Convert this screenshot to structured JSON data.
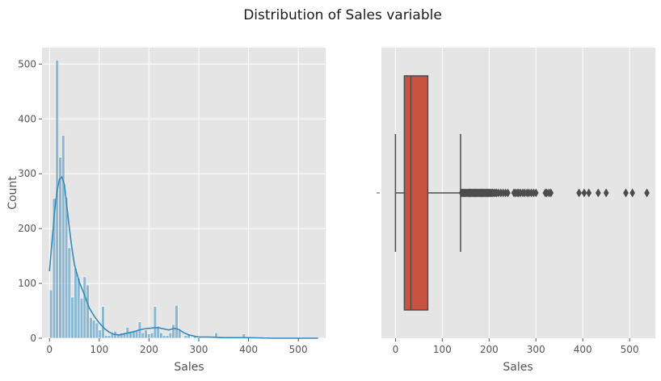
{
  "figure": {
    "title": "Distribution of Sales variable"
  },
  "colors": {
    "panel_bg": "#e5e5e5",
    "grid": "#ffffff",
    "hist_fill": "#348abd",
    "kde_line": "#348abd",
    "box_fill": "#c9533f",
    "whisker": "#4d4d4d"
  },
  "chart_data": [
    {
      "type": "bar",
      "subtype": "histogram_with_kde",
      "title": "",
      "xlabel": "Sales",
      "ylabel": "Count",
      "xlim": [
        -15,
        555
      ],
      "ylim": [
        0,
        530
      ],
      "xticks": [
        0,
        100,
        200,
        300,
        400,
        500
      ],
      "yticks": [
        0,
        100,
        200,
        300,
        400,
        500
      ],
      "grid": true,
      "bin_width": 6.15,
      "bins": [
        {
          "x": 0.0,
          "count": 88
        },
        {
          "x": 6.15,
          "count": 255
        },
        {
          "x": 12.3,
          "count": 507
        },
        {
          "x": 18.45,
          "count": 330
        },
        {
          "x": 24.6,
          "count": 370
        },
        {
          "x": 30.75,
          "count": 257
        },
        {
          "x": 36.9,
          "count": 165
        },
        {
          "x": 43.05,
          "count": 75
        },
        {
          "x": 49.2,
          "count": 128
        },
        {
          "x": 55.35,
          "count": 110
        },
        {
          "x": 61.5,
          "count": 73
        },
        {
          "x": 67.65,
          "count": 112
        },
        {
          "x": 73.8,
          "count": 97
        },
        {
          "x": 79.95,
          "count": 38
        },
        {
          "x": 86.1,
          "count": 33
        },
        {
          "x": 92.25,
          "count": 28
        },
        {
          "x": 98.4,
          "count": 15
        },
        {
          "x": 104.55,
          "count": 58
        },
        {
          "x": 110.7,
          "count": 5
        },
        {
          "x": 116.85,
          "count": 5
        },
        {
          "x": 123.0,
          "count": 8
        },
        {
          "x": 129.15,
          "count": 13
        },
        {
          "x": 135.3,
          "count": 6
        },
        {
          "x": 141.45,
          "count": 10
        },
        {
          "x": 147.6,
          "count": 11
        },
        {
          "x": 153.75,
          "count": 20
        },
        {
          "x": 159.9,
          "count": 13
        },
        {
          "x": 166.05,
          "count": 12
        },
        {
          "x": 172.2,
          "count": 15
        },
        {
          "x": 178.35,
          "count": 30
        },
        {
          "x": 184.5,
          "count": 10
        },
        {
          "x": 190.65,
          "count": 15
        },
        {
          "x": 196.8,
          "count": 8
        },
        {
          "x": 202.95,
          "count": 10
        },
        {
          "x": 209.1,
          "count": 58
        },
        {
          "x": 215.25,
          "count": 22
        },
        {
          "x": 221.4,
          "count": 10
        },
        {
          "x": 227.55,
          "count": 5
        },
        {
          "x": 233.7,
          "count": 5
        },
        {
          "x": 239.85,
          "count": 10
        },
        {
          "x": 246.0,
          "count": 25
        },
        {
          "x": 252.15,
          "count": 60
        },
        {
          "x": 258.3,
          "count": 15
        },
        {
          "x": 270.6,
          "count": 5
        },
        {
          "x": 276.75,
          "count": 8
        },
        {
          "x": 289.05,
          "count": 5
        },
        {
          "x": 332.1,
          "count": 10
        },
        {
          "x": 387.45,
          "count": 8
        },
        {
          "x": 400.0,
          "count": 2
        },
        {
          "x": 430.0,
          "count": 2
        },
        {
          "x": 535.0,
          "count": 1
        }
      ],
      "kde": {
        "x": [
          0,
          5,
          10,
          15,
          20,
          25,
          30,
          35,
          40,
          45,
          50,
          60,
          70,
          80,
          90,
          100,
          110,
          120,
          130,
          140,
          150,
          160,
          170,
          180,
          190,
          200,
          210,
          220,
          230,
          240,
          250,
          260,
          270,
          280,
          290,
          300,
          320,
          350,
          400,
          450,
          500,
          540
        ],
        "y": [
          122,
          175,
          228,
          268,
          290,
          294,
          280,
          240,
          200,
          165,
          135,
          102,
          80,
          55,
          40,
          28,
          18,
          11,
          7,
          6,
          8,
          10,
          12,
          15,
          17,
          18,
          19,
          19,
          17,
          15,
          18,
          16,
          10,
          6,
          4,
          2,
          2,
          1,
          1,
          0,
          0,
          0
        ]
      }
    },
    {
      "type": "box",
      "title": "",
      "xlabel": "Sales",
      "ylabel": "",
      "xlim": [
        -30,
        555
      ],
      "xticks": [
        0,
        100,
        200,
        300,
        400,
        500
      ],
      "grid": true,
      "whisker_low": 0,
      "q1": 19,
      "median": 33,
      "q3": 69,
      "whisker_high": 139,
      "outliers": [
        141,
        143,
        145,
        147,
        149,
        151,
        153,
        155,
        157,
        159,
        161,
        163,
        165,
        167,
        169,
        171,
        173,
        175,
        177,
        179,
        181,
        183,
        185,
        187,
        189,
        191,
        193,
        195,
        197,
        199,
        201,
        203,
        205,
        207,
        210,
        213,
        216,
        220,
        225,
        230,
        235,
        240,
        253,
        256,
        260,
        263,
        267,
        272,
        276,
        281,
        285,
        290,
        295,
        300,
        320,
        323,
        328,
        332,
        392,
        403,
        413,
        433,
        450,
        492,
        506,
        537
      ]
    }
  ]
}
